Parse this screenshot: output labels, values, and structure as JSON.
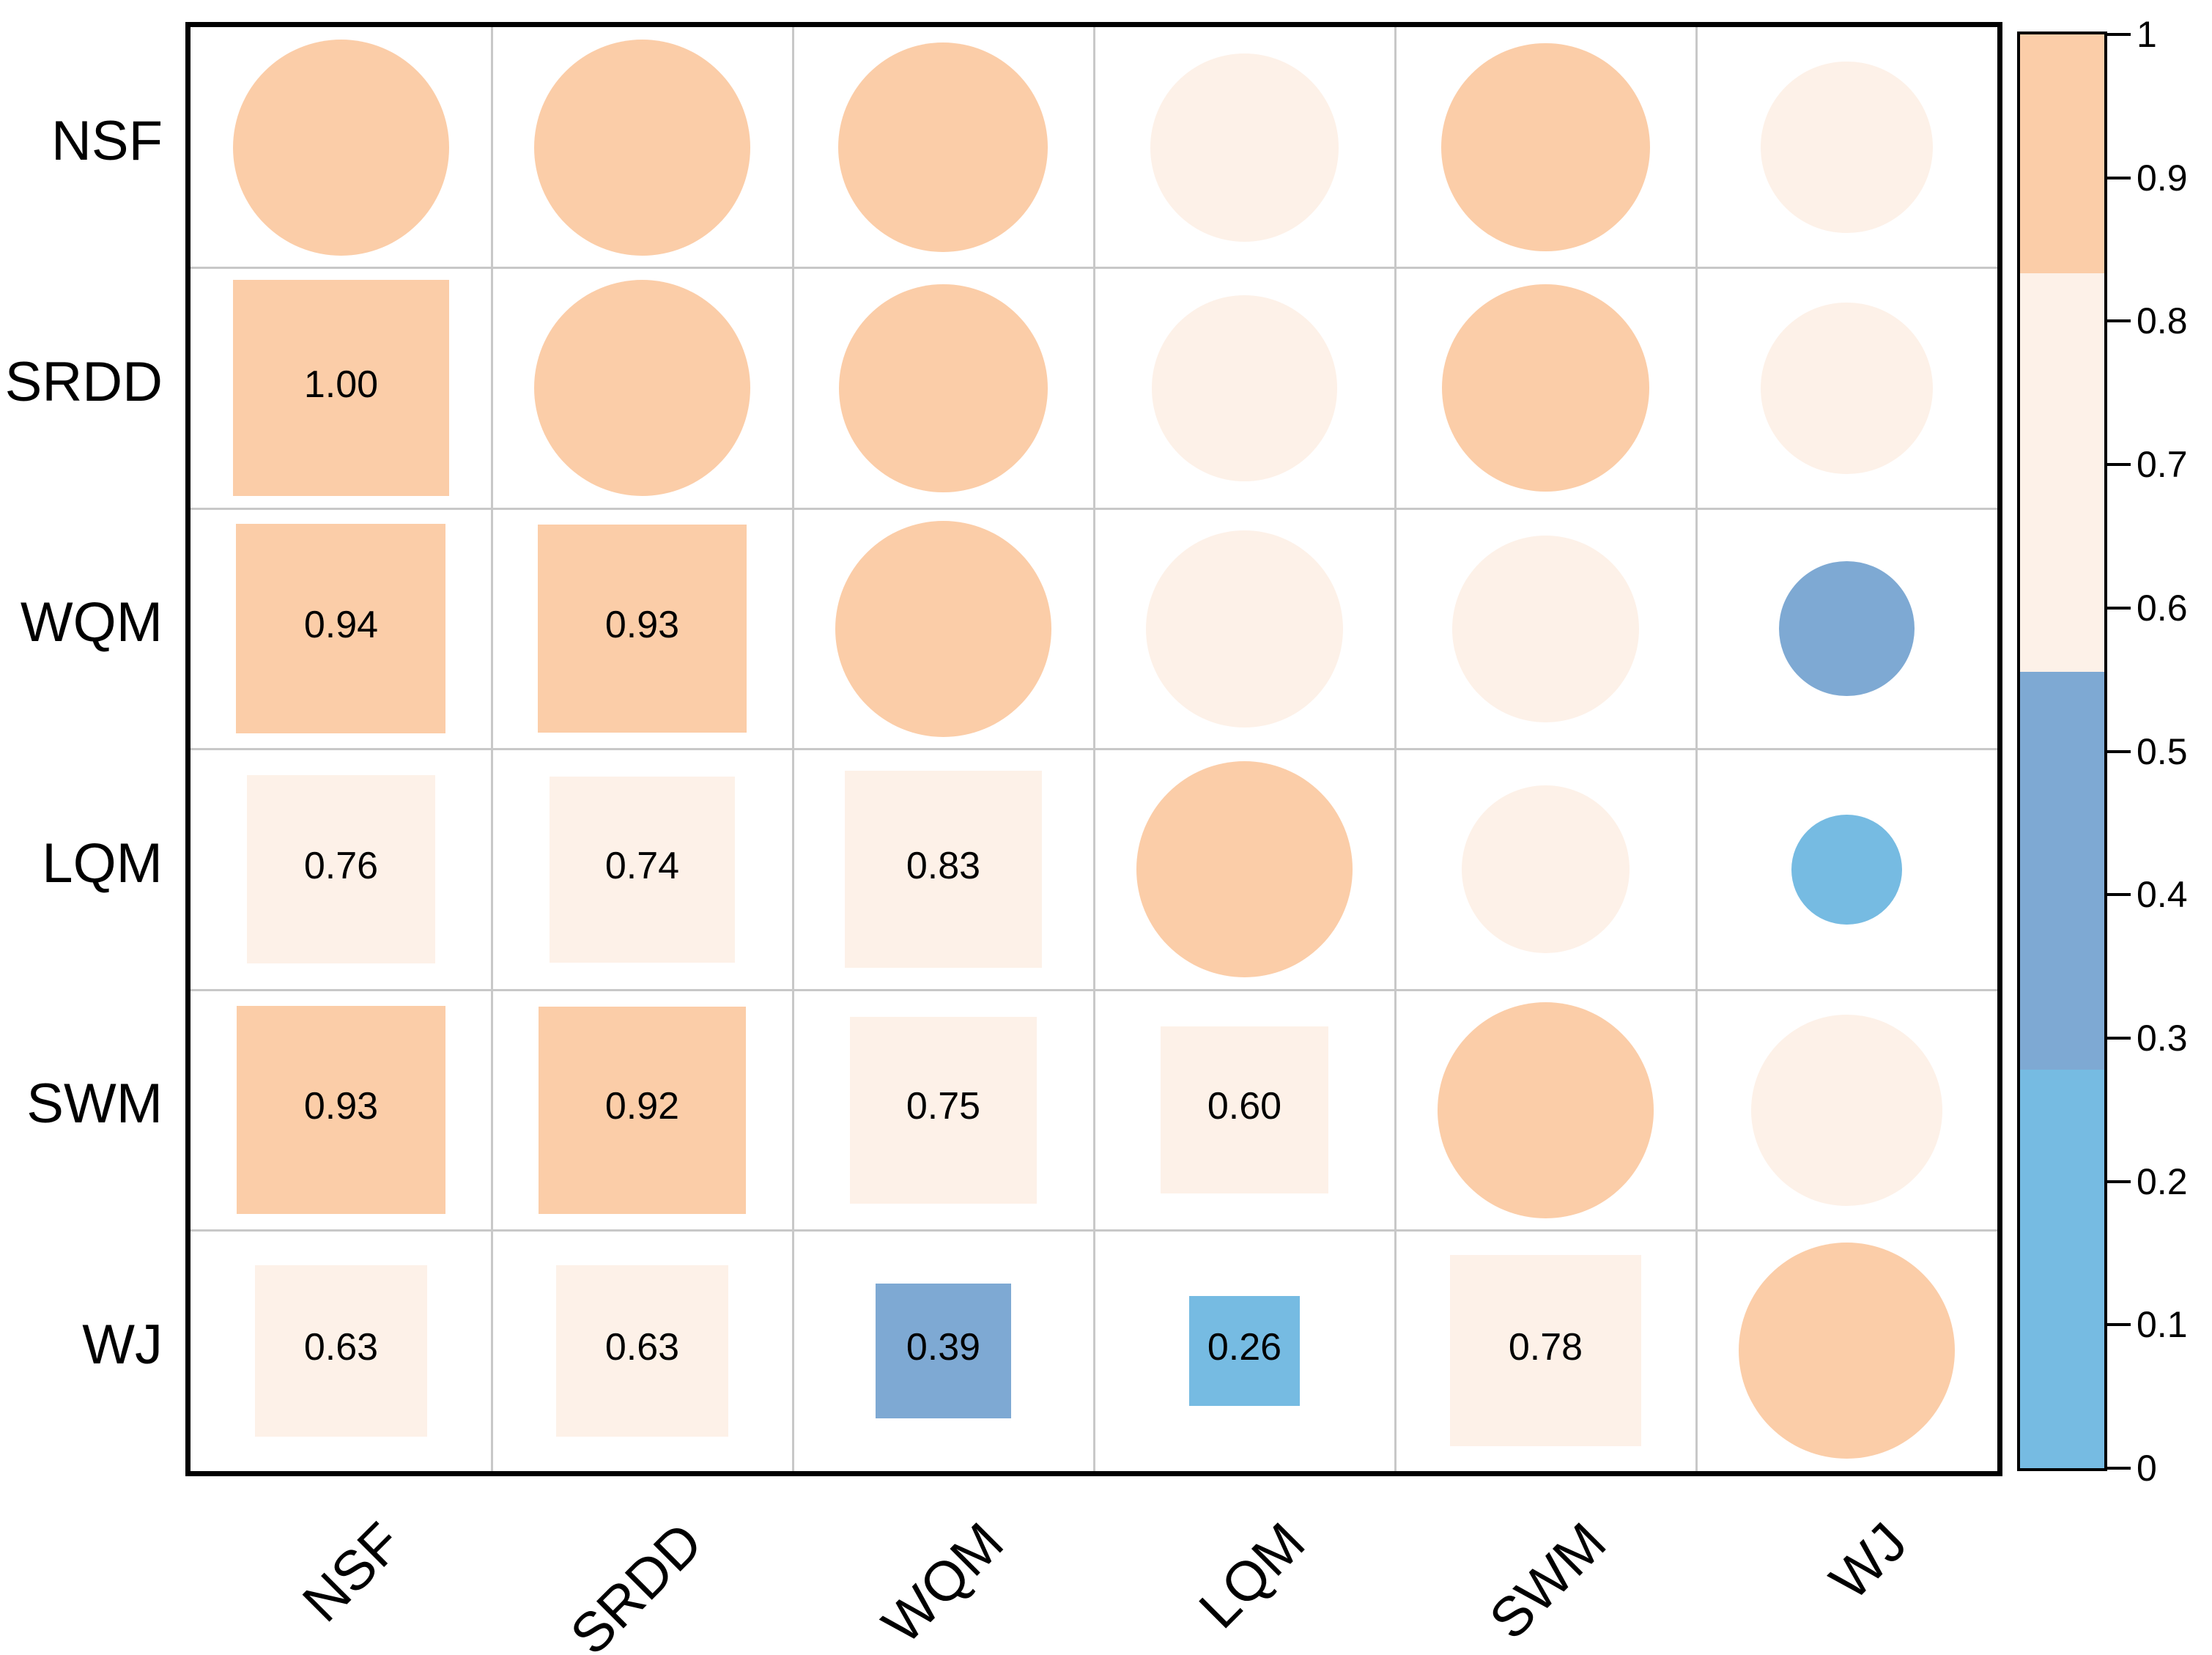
{
  "chart_data": {
    "type": "heatmap",
    "subtype": "correlation-matrix (corrplot mixed: upper=circle, lower=square+number)",
    "variables": [
      "NSF",
      "SRDD",
      "WQM",
      "LQM",
      "SWM",
      "WJ"
    ],
    "matrix": [
      [
        1.0,
        1.0,
        0.94,
        0.76,
        0.93,
        0.63
      ],
      [
        1.0,
        1.0,
        0.93,
        0.74,
        0.92,
        0.63
      ],
      [
        0.94,
        0.93,
        1.0,
        0.83,
        0.75,
        0.39
      ],
      [
        0.76,
        0.74,
        0.83,
        1.0,
        0.6,
        0.26
      ],
      [
        0.93,
        0.92,
        0.75,
        0.6,
        1.0,
        0.78
      ],
      [
        0.63,
        0.63,
        0.39,
        0.26,
        0.78,
        1.0
      ]
    ],
    "lower_triangle_value_labels": [
      "1.00",
      "0.94",
      "0.93",
      "0.76",
      "0.74",
      "0.83",
      "0.93",
      "0.92",
      "0.75",
      "0.60",
      "0.63",
      "0.63",
      "0.39",
      "0.26",
      "0.78"
    ],
    "value_label_format": "0.00",
    "marker_scaling": "side/diameter proportional to sqrt(|r|)",
    "grid": true,
    "legend_position": "right",
    "colorbar": {
      "min": 0,
      "max": 1,
      "tick_labels": [
        "1",
        "0.9",
        "0.8",
        "0.7",
        "0.6",
        "0.5",
        "0.4",
        "0.3",
        "0.2",
        "0.1",
        "0"
      ],
      "tick_values": [
        1,
        0.9,
        0.8,
        0.7,
        0.6,
        0.5,
        0.4,
        0.3,
        0.2,
        0.1,
        0
      ],
      "bands": [
        {
          "from": 1.0,
          "to": 0.8333,
          "color": "#FBCDA8"
        },
        {
          "from": 0.8333,
          "to": 0.5556,
          "color": "#FDF1E8"
        },
        {
          "from": 0.5556,
          "to": 0.2778,
          "color": "#7EA9D3"
        },
        {
          "from": 0.2778,
          "to": 0.0,
          "color": "#76BBE2"
        }
      ]
    }
  },
  "style": {
    "background_color": "#FFFFFF",
    "text_color": "#000000",
    "grid_color": "#C8C8C8",
    "frame_color": "#000000",
    "high_corr_color": "#FBCDA8",
    "mid_corr_color": "#FDF1E8",
    "low_mid_corr_color": "#7EA9D3",
    "low_corr_color": "#76BBE2"
  }
}
